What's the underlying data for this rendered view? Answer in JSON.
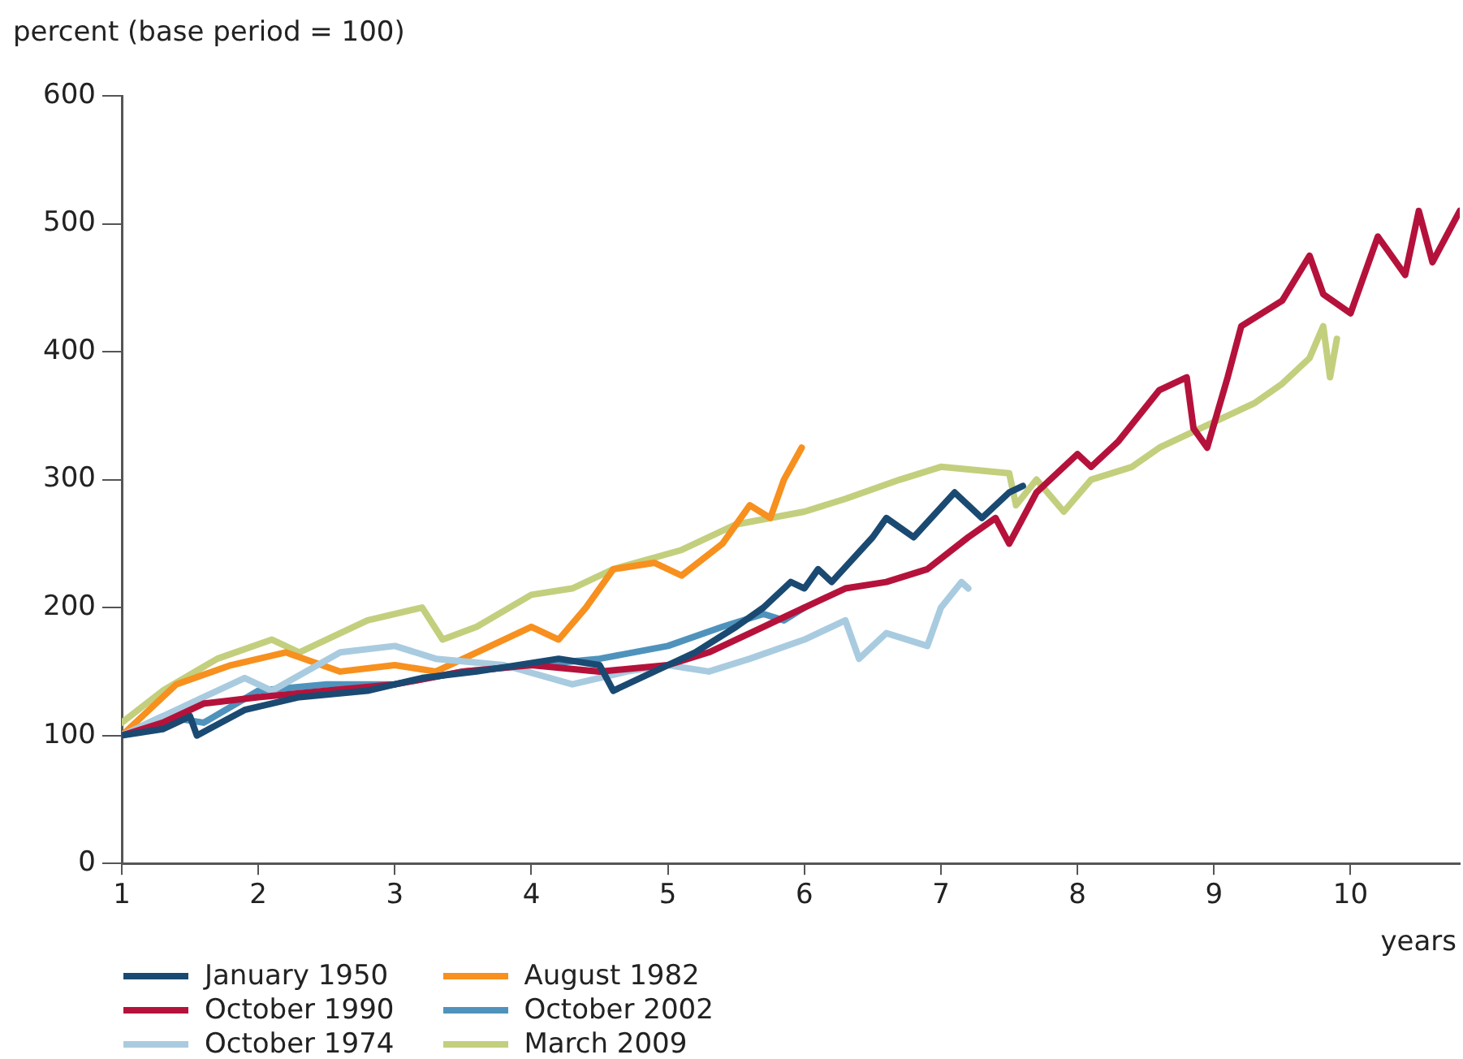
{
  "chart_data": {
    "type": "line",
    "ylabel": "percent (base period = 100)",
    "xlabel": "years",
    "xlim": [
      1,
      10.8
    ],
    "xticks": [
      1,
      2,
      3,
      4,
      5,
      6,
      7,
      8,
      9,
      10
    ],
    "ylim": [
      0,
      600
    ],
    "yticks": [
      0,
      100,
      200,
      300,
      400,
      500,
      600
    ],
    "grid": false,
    "legend": "bottom",
    "marker": "none",
    "line_style": "solid",
    "series": [
      {
        "name": "January 1950",
        "color": "#1a4a72",
        "x": [
          1,
          1.3,
          1.5,
          1.55,
          1.9,
          2.3,
          2.8,
          3.2,
          3.6,
          4.2,
          4.5,
          4.6,
          4.9,
          5.2,
          5.5,
          5.7,
          5.9,
          6.0,
          6.1,
          6.2,
          6.5,
          6.6,
          6.8,
          7.1,
          7.3,
          7.5,
          7.6
        ],
        "values": [
          100,
          105,
          115,
          100,
          120,
          130,
          135,
          145,
          150,
          160,
          155,
          135,
          150,
          165,
          185,
          200,
          220,
          215,
          230,
          220,
          255,
          270,
          255,
          290,
          270,
          290,
          295
        ]
      },
      {
        "name": "October 1990",
        "color": "#b5123b",
        "x": [
          1,
          1.3,
          1.6,
          2,
          2.5,
          3,
          3.5,
          4,
          4.5,
          5,
          5.3,
          5.7,
          6,
          6.3,
          6.6,
          6.9,
          7.2,
          7.4,
          7.5,
          7.7,
          8.0,
          8.1,
          8.3,
          8.6,
          8.8,
          8.85,
          8.95,
          9.1,
          9.2,
          9.5,
          9.7,
          9.8,
          10.0,
          10.2,
          10.4,
          10.5,
          10.6,
          10.7,
          10.8
        ],
        "values": [
          100,
          110,
          125,
          130,
          135,
          140,
          150,
          155,
          150,
          155,
          165,
          185,
          200,
          215,
          220,
          230,
          255,
          270,
          250,
          290,
          320,
          310,
          330,
          370,
          380,
          340,
          325,
          380,
          420,
          440,
          475,
          445,
          430,
          490,
          460,
          510,
          470,
          490,
          510
        ]
      },
      {
        "name": "October 1974",
        "color": "#a9cbe0",
        "x": [
          1,
          1.4,
          1.9,
          2.1,
          2.6,
          3,
          3.3,
          3.8,
          4.3,
          4.7,
          5,
          5.3,
          5.6,
          6,
          6.3,
          6.4,
          6.6,
          6.9,
          7,
          7.15,
          7.2
        ],
        "values": [
          100,
          120,
          145,
          135,
          165,
          170,
          160,
          155,
          140,
          150,
          155,
          150,
          160,
          175,
          190,
          160,
          180,
          170,
          200,
          220,
          215
        ]
      },
      {
        "name": "August 1982",
        "color": "#f7901e",
        "x": [
          1,
          1.4,
          1.8,
          2.2,
          2.6,
          3,
          3.3,
          3.6,
          4,
          4.2,
          4.4,
          4.6,
          4.9,
          5.1,
          5.4,
          5.6,
          5.75,
          5.85,
          5.98
        ],
        "values": [
          100,
          140,
          155,
          165,
          150,
          155,
          150,
          165,
          185,
          175,
          200,
          230,
          235,
          225,
          250,
          280,
          270,
          300,
          325
        ]
      },
      {
        "name": "October 2002",
        "color": "#4f93bd",
        "x": [
          1,
          1.3,
          1.6,
          2,
          2.5,
          3,
          3.5,
          4,
          4.5,
          5,
          5.4,
          5.7,
          5.85,
          6
        ],
        "values": [
          100,
          115,
          110,
          135,
          140,
          140,
          150,
          155,
          160,
          170,
          185,
          195,
          190,
          200
        ]
      },
      {
        "name": "March 2009",
        "color": "#c3cf7d",
        "x": [
          1,
          1.3,
          1.7,
          2.1,
          2.3,
          2.8,
          3.2,
          3.35,
          3.6,
          4,
          4.3,
          4.6,
          5.1,
          5.5,
          6,
          6.3,
          6.7,
          7,
          7.5,
          7.55,
          7.7,
          7.9,
          8.1,
          8.4,
          8.6,
          9,
          9.3,
          9.5,
          9.7,
          9.8,
          9.85,
          9.9
        ],
        "values": [
          110,
          135,
          160,
          175,
          165,
          190,
          200,
          175,
          185,
          210,
          215,
          230,
          245,
          265,
          275,
          285,
          300,
          310,
          305,
          280,
          300,
          275,
          300,
          310,
          325,
          345,
          360,
          375,
          395,
          420,
          380,
          410
        ]
      }
    ]
  }
}
